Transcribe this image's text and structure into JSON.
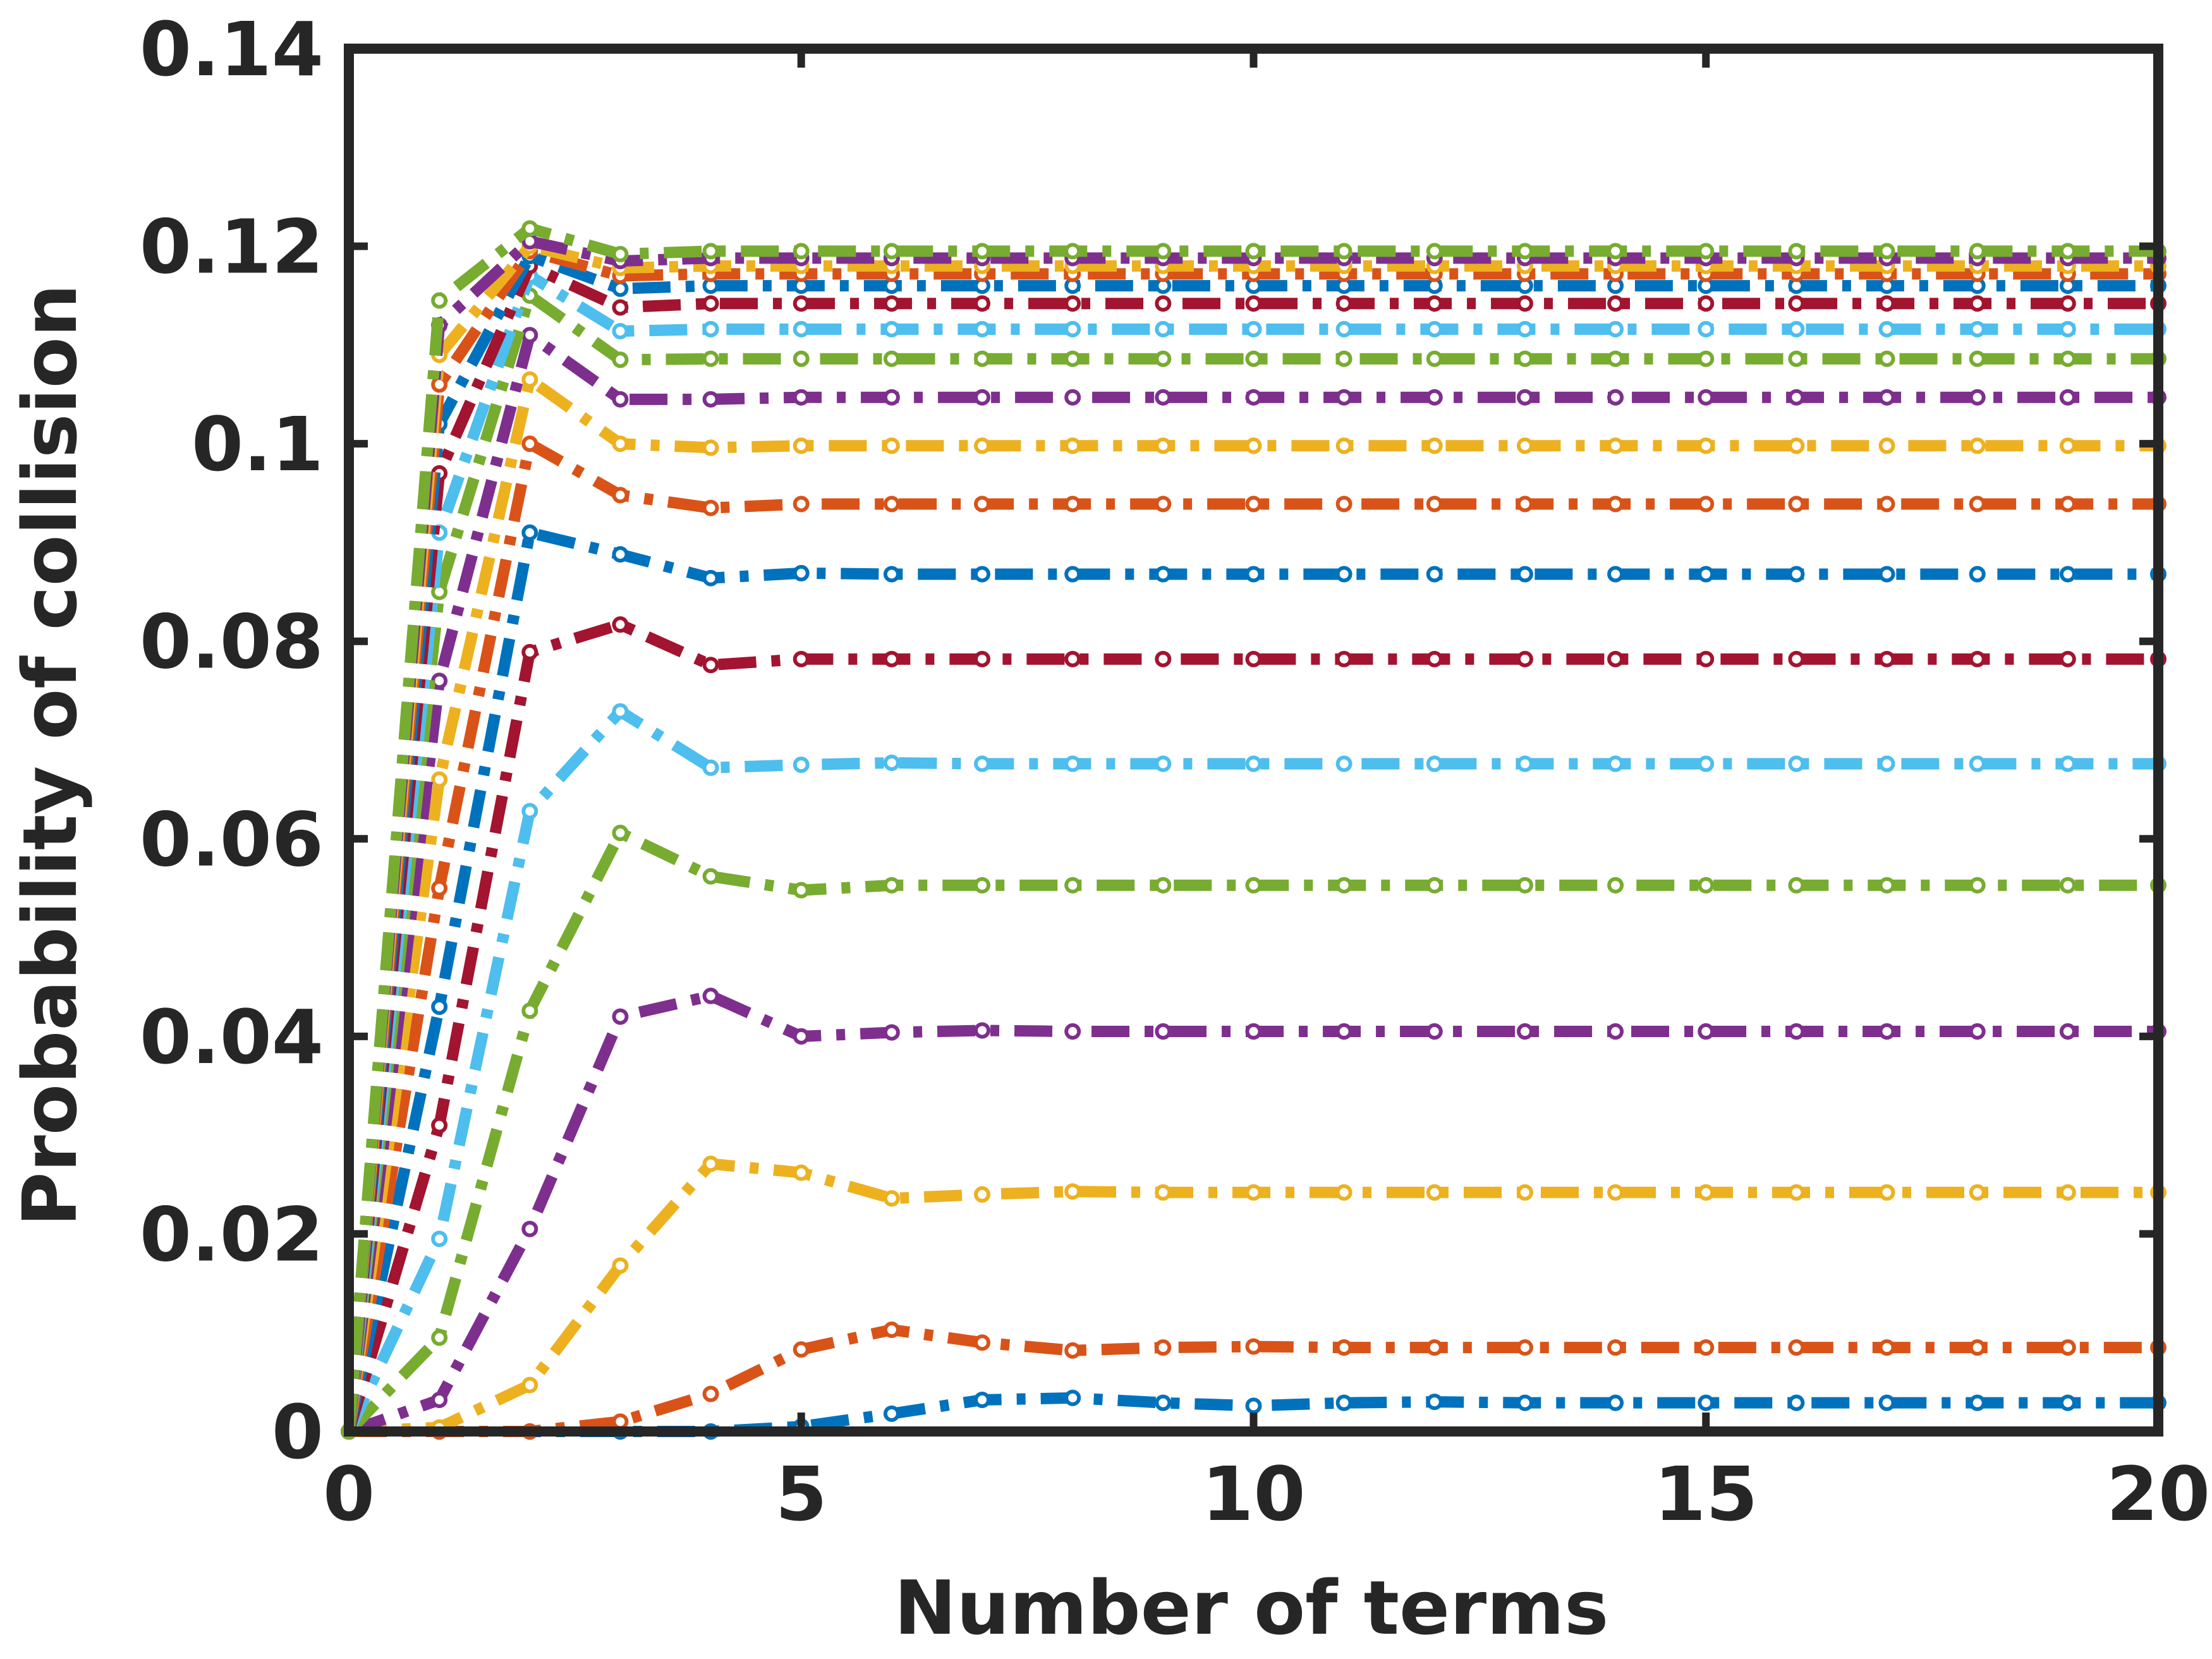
{
  "chart_data": {
    "type": "line",
    "title": "",
    "xlabel": "Number of terms",
    "ylabel": "Probability of collision",
    "xlim": [
      0,
      20
    ],
    "ylim": [
      0,
      0.14
    ],
    "xticks": [
      0,
      5,
      10,
      15,
      20
    ],
    "xtick_labels": [
      "0",
      "5",
      "10",
      "15",
      "20"
    ],
    "yticks": [
      0,
      0.02,
      0.04,
      0.06,
      0.08,
      0.1,
      0.12,
      0.14
    ],
    "ytick_labels": [
      "0",
      "0.02",
      "0.04",
      "0.06",
      "0.08",
      "0.1",
      "0.12",
      "0.14"
    ],
    "grid": false,
    "legend": "none",
    "line_style": "dash-dot with circle markers",
    "x": [
      0,
      1,
      2,
      3,
      4,
      5,
      6,
      7,
      8,
      9,
      10,
      11,
      12,
      13,
      14,
      15,
      16,
      17,
      18,
      19,
      20
    ],
    "series": [
      {
        "color": "#0072BD",
        "values": [
          0,
          0,
          0,
          0,
          0,
          0.0005,
          0.0018,
          0.0032,
          0.0034,
          0.0029,
          0.0026,
          0.0029,
          0.003,
          0.0029,
          0.0029,
          0.0029,
          0.0029,
          0.0029,
          0.0029,
          0.0029,
          0.0029
        ]
      },
      {
        "color": "#D95319",
        "values": [
          0,
          0,
          0,
          0.001,
          0.0038,
          0.0083,
          0.0103,
          0.009,
          0.0082,
          0.0085,
          0.0086,
          0.0085,
          0.0085,
          0.0085,
          0.0085,
          0.0085,
          0.0085,
          0.0085,
          0.0085,
          0.0085,
          0.0085
        ]
      },
      {
        "color": "#EDB120",
        "values": [
          0,
          0.0004,
          0.0047,
          0.0168,
          0.0271,
          0.0262,
          0.0236,
          0.024,
          0.0243,
          0.0242,
          0.0242,
          0.0242,
          0.0242,
          0.0242,
          0.0242,
          0.0242,
          0.0242,
          0.0242,
          0.0242,
          0.0242,
          0.0242
        ]
      },
      {
        "color": "#7E2F8E",
        "values": [
          0,
          0.0032,
          0.0205,
          0.042,
          0.0441,
          0.04,
          0.0404,
          0.0406,
          0.0405,
          0.0405,
          0.0405,
          0.0405,
          0.0405,
          0.0405,
          0.0405,
          0.0405,
          0.0405,
          0.0405,
          0.0405,
          0.0405,
          0.0405
        ]
      },
      {
        "color": "#77AC30",
        "values": [
          0,
          0.0095,
          0.0426,
          0.0606,
          0.0562,
          0.0548,
          0.0553,
          0.0553,
          0.0553,
          0.0553,
          0.0553,
          0.0553,
          0.0553,
          0.0553,
          0.0553,
          0.0553,
          0.0553,
          0.0553,
          0.0553,
          0.0553,
          0.0553
        ]
      },
      {
        "color": "#4DBEEE",
        "values": [
          0,
          0.0195,
          0.0628,
          0.0729,
          0.0672,
          0.0675,
          0.0677,
          0.0676,
          0.0676,
          0.0676,
          0.0676,
          0.0676,
          0.0676,
          0.0676,
          0.0676,
          0.0676,
          0.0676,
          0.0676,
          0.0676,
          0.0676,
          0.0676
        ]
      },
      {
        "color": "#A2142F",
        "values": [
          0,
          0.031,
          0.0789,
          0.0817,
          0.0776,
          0.0782,
          0.0782,
          0.0782,
          0.0782,
          0.0782,
          0.0782,
          0.0782,
          0.0782,
          0.0782,
          0.0782,
          0.0782,
          0.0782,
          0.0782,
          0.0782,
          0.0782,
          0.0782
        ]
      },
      {
        "color": "#0072BD",
        "values": [
          0,
          0.043,
          0.091,
          0.0888,
          0.0864,
          0.0869,
          0.0868,
          0.0868,
          0.0868,
          0.0868,
          0.0868,
          0.0868,
          0.0868,
          0.0868,
          0.0868,
          0.0868,
          0.0868,
          0.0868,
          0.0868,
          0.0868,
          0.0868
        ]
      },
      {
        "color": "#D95319",
        "values": [
          0,
          0.055,
          0.1,
          0.0948,
          0.0935,
          0.0939,
          0.0939,
          0.0939,
          0.0939,
          0.0939,
          0.0939,
          0.0939,
          0.0939,
          0.0939,
          0.0939,
          0.0939,
          0.0939,
          0.0939,
          0.0939,
          0.0939,
          0.0939
        ]
      },
      {
        "color": "#EDB120",
        "values": [
          0,
          0.066,
          0.1065,
          0.1,
          0.0996,
          0.0998,
          0.0998,
          0.0998,
          0.0998,
          0.0998,
          0.0998,
          0.0998,
          0.0998,
          0.0998,
          0.0998,
          0.0998,
          0.0998,
          0.0998,
          0.0998,
          0.0998,
          0.0998
        ]
      },
      {
        "color": "#7E2F8E",
        "values": [
          0,
          0.076,
          0.111,
          0.1045,
          0.1045,
          0.1047,
          0.1047,
          0.1047,
          0.1047,
          0.1047,
          0.1047,
          0.1047,
          0.1047,
          0.1047,
          0.1047,
          0.1047,
          0.1047,
          0.1047,
          0.1047,
          0.1047,
          0.1047
        ]
      },
      {
        "color": "#77AC30",
        "values": [
          0,
          0.085,
          0.115,
          0.1085,
          0.1086,
          0.1086,
          0.1086,
          0.1086,
          0.1086,
          0.1086,
          0.1086,
          0.1086,
          0.1086,
          0.1086,
          0.1086,
          0.1086,
          0.1086,
          0.1086,
          0.1086,
          0.1086,
          0.1086
        ]
      },
      {
        "color": "#4DBEEE",
        "values": [
          0,
          0.091,
          0.117,
          0.1114,
          0.1116,
          0.1116,
          0.1116,
          0.1116,
          0.1116,
          0.1116,
          0.1116,
          0.1116,
          0.1116,
          0.1116,
          0.1116,
          0.1116,
          0.1116,
          0.1116,
          0.1116,
          0.1116,
          0.1116
        ]
      },
      {
        "color": "#A2142F",
        "values": [
          0,
          0.097,
          0.118,
          0.1138,
          0.1142,
          0.1142,
          0.1142,
          0.1142,
          0.1142,
          0.1142,
          0.1142,
          0.1142,
          0.1142,
          0.1142,
          0.1142,
          0.1142,
          0.1142,
          0.1142,
          0.1142,
          0.1142,
          0.1142
        ]
      },
      {
        "color": "#0072BD",
        "values": [
          0,
          0.102,
          0.119,
          0.1157,
          0.116,
          0.116,
          0.116,
          0.116,
          0.116,
          0.116,
          0.116,
          0.116,
          0.116,
          0.116,
          0.116,
          0.116,
          0.116,
          0.116,
          0.116,
          0.116,
          0.116
        ]
      },
      {
        "color": "#D95319",
        "values": [
          0,
          0.106,
          0.1195,
          0.117,
          0.1172,
          0.1172,
          0.1172,
          0.1172,
          0.1172,
          0.1172,
          0.1172,
          0.1172,
          0.1172,
          0.1172,
          0.1172,
          0.1172,
          0.1172,
          0.1172,
          0.1172,
          0.1172,
          0.1172
        ]
      },
      {
        "color": "#EDB120",
        "values": [
          0,
          0.109,
          0.12,
          0.1178,
          0.118,
          0.118,
          0.118,
          0.118,
          0.118,
          0.118,
          0.118,
          0.118,
          0.118,
          0.118,
          0.118,
          0.118,
          0.118,
          0.118,
          0.118,
          0.118,
          0.118
        ]
      },
      {
        "color": "#7E2F8E",
        "values": [
          0,
          0.112,
          0.1205,
          0.1185,
          0.1188,
          0.1188,
          0.1188,
          0.1188,
          0.1188,
          0.1188,
          0.1188,
          0.1188,
          0.1188,
          0.1188,
          0.1188,
          0.1188,
          0.1188,
          0.1188,
          0.1188,
          0.1188,
          0.1188
        ]
      },
      {
        "color": "#77AC30",
        "values": [
          0,
          0.1145,
          0.1218,
          0.1192,
          0.1195,
          0.1195,
          0.1195,
          0.1195,
          0.1195,
          0.1195,
          0.1195,
          0.1195,
          0.1195,
          0.1195,
          0.1195,
          0.1195,
          0.1195,
          0.1195,
          0.1195,
          0.1195,
          0.1195
        ]
      }
    ]
  }
}
